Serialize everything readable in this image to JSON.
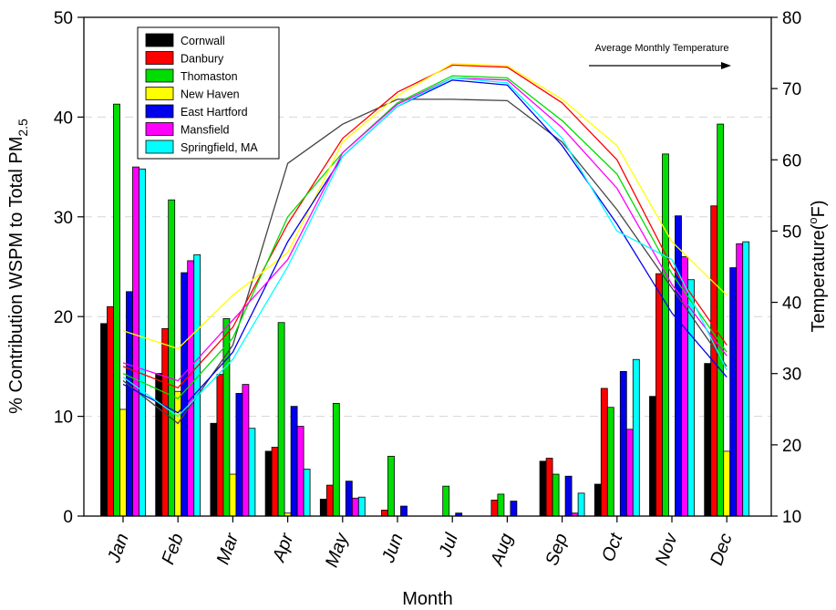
{
  "chart_data": {
    "type": "bar",
    "categories": [
      "Jan",
      "Feb",
      "Mar",
      "Apr",
      "May",
      "Jun",
      "Jul",
      "Aug",
      "Sep",
      "Oct",
      "Nov",
      "Dec"
    ],
    "xlabel": "Month",
    "ylabel": {
      "prefix": "% Contribution WSPM to Total PM",
      "subscript": "2.5"
    },
    "y2label": {
      "before": "Temperature(",
      "superscript": "o",
      "after": "F)"
    },
    "ylim": [
      0,
      50
    ],
    "yticks": [
      0,
      10,
      20,
      30,
      40,
      50
    ],
    "y2lim": [
      10,
      80
    ],
    "y2ticks": [
      10,
      20,
      30,
      40,
      50,
      60,
      70,
      80
    ],
    "grid": "horizontal-dashed",
    "legend_position": "top-left",
    "annotation": "Average Monthly Temperature",
    "series": [
      {
        "name": "Cornwall",
        "color": "#000000",
        "values": [
          19.3,
          14.3,
          9.3,
          6.5,
          1.7,
          0,
          0,
          0,
          5.5,
          3.2,
          12.0,
          15.3
        ],
        "temperature": [
          29,
          23,
          34,
          59.5,
          65,
          68.5,
          68.5,
          68.3,
          62.5,
          53,
          42,
          31
        ]
      },
      {
        "name": "Danbury",
        "color": "#ff0000",
        "values": [
          21.0,
          18.8,
          14.2,
          6.9,
          3.1,
          0.6,
          0,
          1.6,
          5.8,
          12.8,
          24.3,
          31.1
        ],
        "temperature": [
          31,
          28,
          36.5,
          51,
          63,
          69.5,
          73.3,
          73,
          68,
          60,
          45,
          34
        ]
      },
      {
        "name": "Thomaston",
        "color": "#00dd00",
        "values": [
          41.3,
          31.7,
          19.8,
          19.4,
          11.3,
          6.0,
          3.0,
          2.2,
          4.2,
          10.9,
          36.3,
          39.3
        ],
        "temperature": [
          30,
          26.5,
          35,
          52,
          61,
          68,
          71.8,
          71.5,
          65.5,
          58,
          44,
          33
        ]
      },
      {
        "name": "New Haven",
        "color": "#ffff00",
        "values": [
          10.7,
          12.5,
          4.2,
          0.3,
          0,
          0,
          0,
          0,
          0,
          0,
          0,
          6.5
        ],
        "temperature": [
          36,
          33.5,
          41,
          47,
          62.5,
          69,
          73.5,
          73.2,
          68.5,
          62,
          48.5,
          41
        ]
      },
      {
        "name": "East Hartford",
        "color": "#0000ee",
        "values": [
          22.5,
          24.4,
          12.3,
          11.0,
          3.5,
          1.0,
          0.3,
          1.5,
          4.0,
          14.5,
          30.1,
          24.9
        ],
        "temperature": [
          28.5,
          24.5,
          33,
          48.5,
          60.5,
          67.5,
          71.2,
          70.5,
          62,
          51,
          38.5,
          29.5
        ]
      },
      {
        "name": "Mansfield",
        "color": "#ff00ff",
        "values": [
          35.0,
          25.6,
          13.2,
          9.0,
          1.8,
          0,
          0,
          0,
          0.3,
          8.7,
          26.0,
          27.3
        ],
        "temperature": [
          31.5,
          29,
          37.5,
          46,
          61,
          67.8,
          71.5,
          71.2,
          64.5,
          56,
          42.5,
          32.5
        ]
      },
      {
        "name": "Springfield, MA",
        "color": "#00ffff",
        "values": [
          34.8,
          26.2,
          8.8,
          4.7,
          1.9,
          0,
          0,
          0,
          2.3,
          15.7,
          23.7,
          27.5
        ],
        "temperature": [
          29.5,
          24,
          32,
          45,
          60.5,
          67.5,
          71.5,
          70.8,
          63,
          50,
          46,
          30.5
        ]
      }
    ]
  }
}
